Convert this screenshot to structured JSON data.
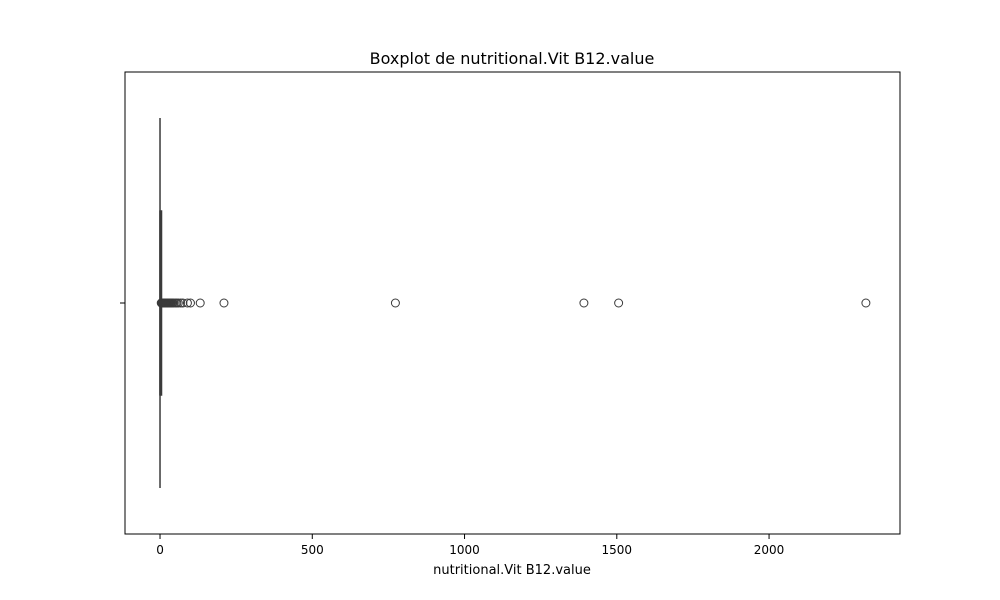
{
  "chart_data": {
    "type": "box",
    "orientation": "horizontal",
    "title": "Boxplot de nutritional.Vit B12.value",
    "xlabel": "nutritional.Vit B12.value",
    "ylabel": "",
    "xlim": [
      -115,
      2430
    ],
    "xticks": [
      0,
      500,
      1000,
      1500,
      2000
    ],
    "xtick_labels": [
      "0",
      "500",
      "1000",
      "1500",
      "2000"
    ],
    "grid": false,
    "box": {
      "min": 0,
      "q1": 0,
      "median": 0.3,
      "q3": 1.5,
      "max": 3.5
    },
    "outliers": [
      4,
      5,
      6,
      7,
      8,
      9,
      10,
      11,
      12,
      13,
      14,
      15,
      16,
      17,
      18,
      19,
      20,
      22,
      24,
      26,
      28,
      30,
      32,
      35,
      38,
      41,
      45,
      50,
      55,
      60,
      68,
      75,
      90,
      100,
      132,
      210,
      773,
      1392,
      1506,
      2318
    ],
    "colors": {
      "box_fill": "#3f6fa3",
      "line": "#3a3a3a",
      "outlier_edge": "#3a3a3a"
    }
  }
}
